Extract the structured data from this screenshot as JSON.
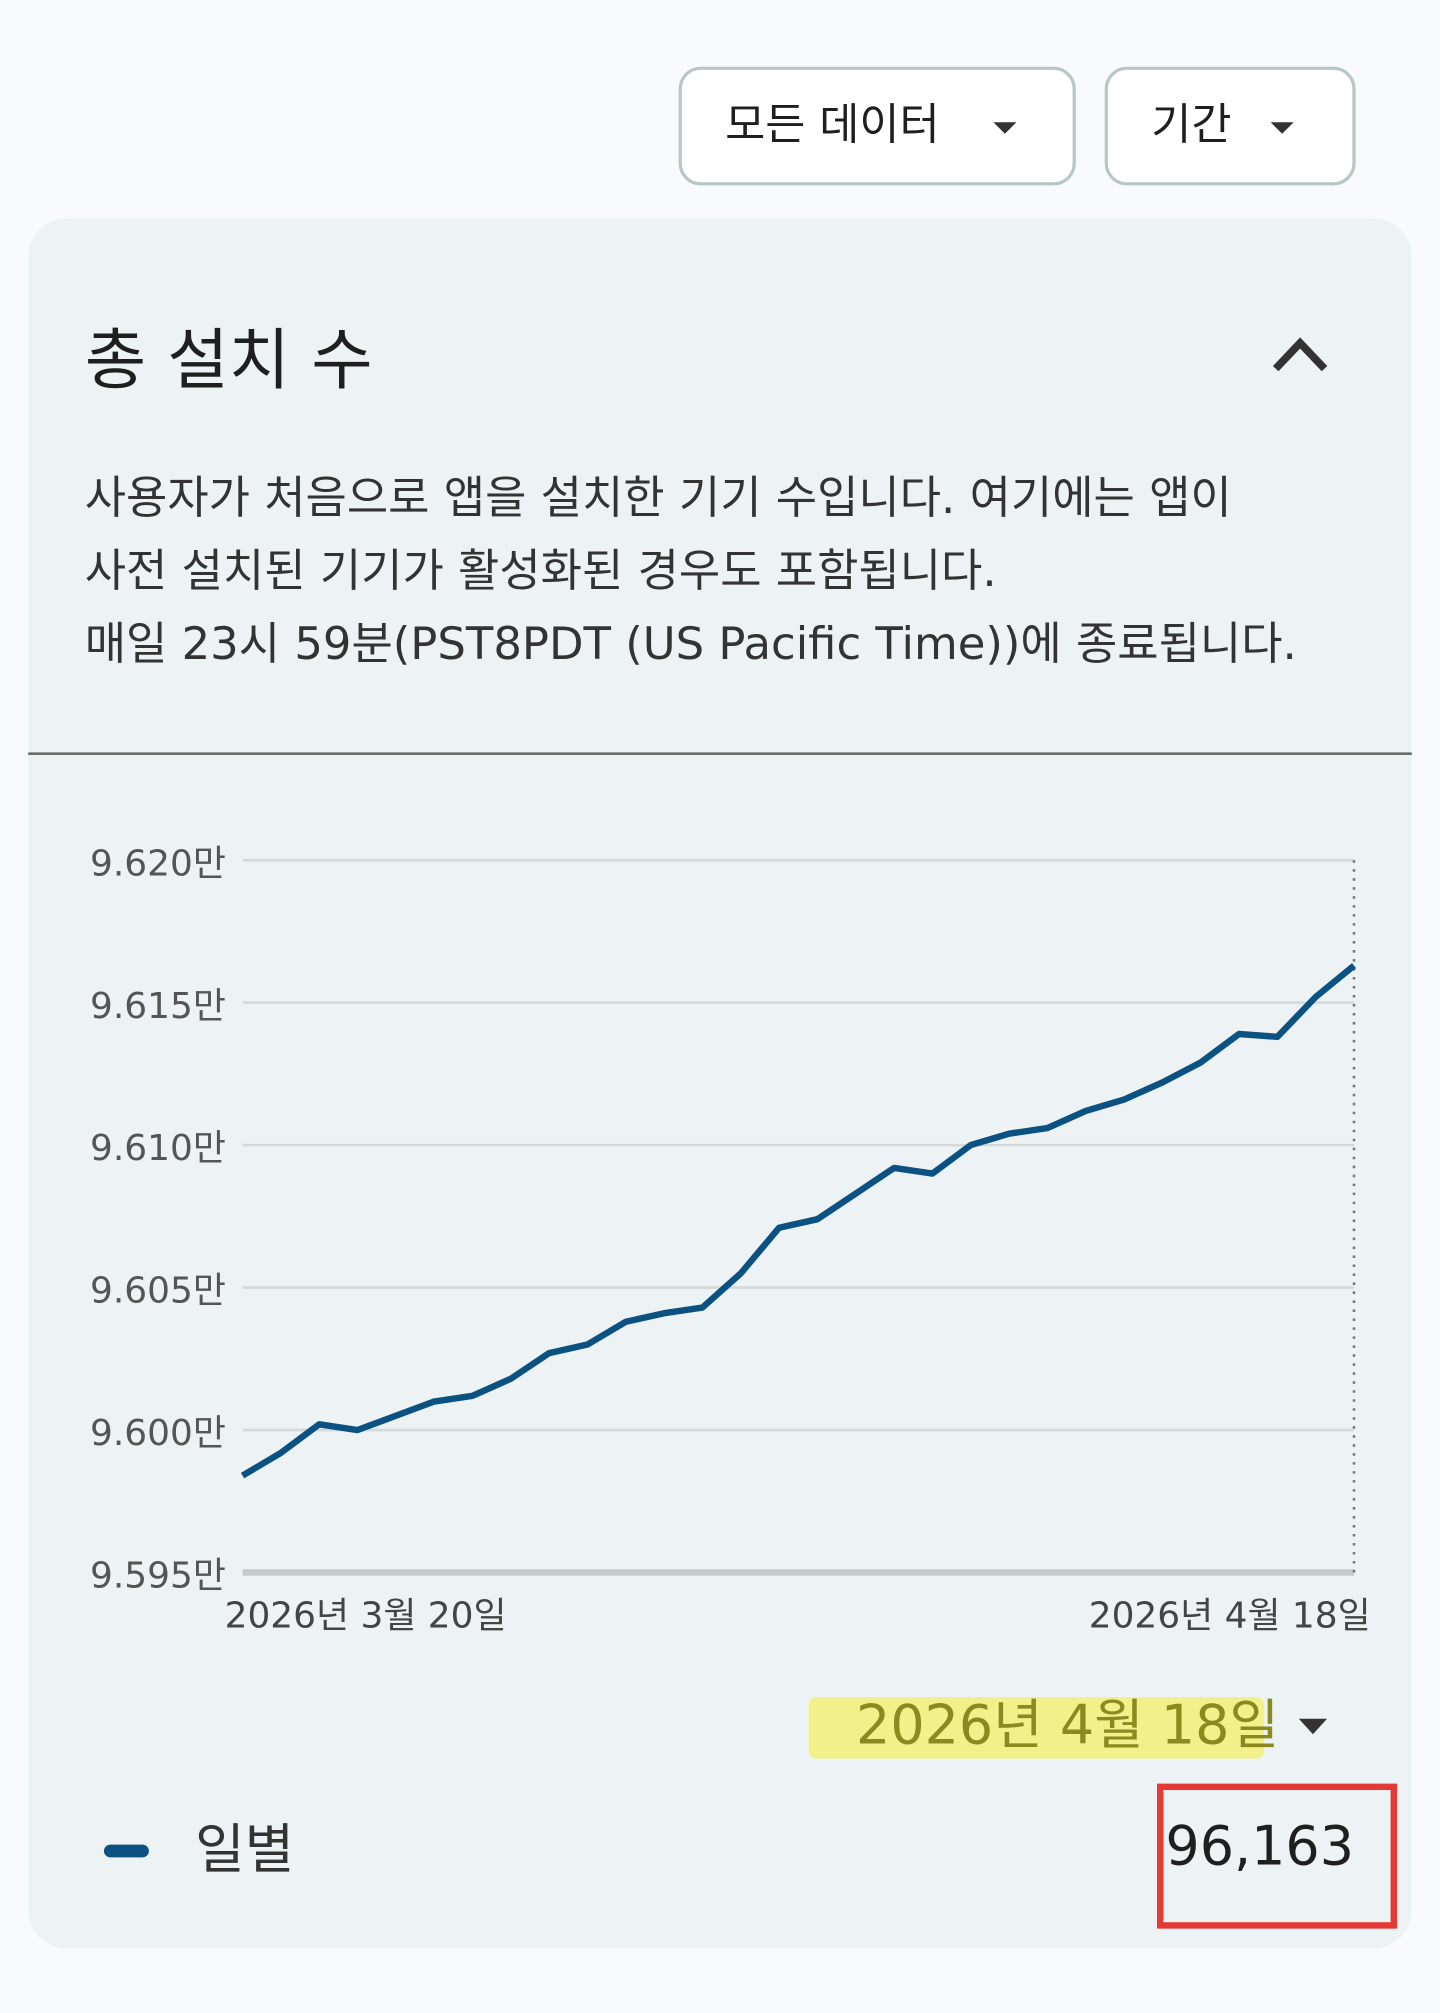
{
  "toolbar": {
    "buttons": [
      {
        "label": "모든 데이터"
      },
      {
        "label": "기간"
      }
    ]
  },
  "card": {
    "title": "총 설치 수",
    "description": [
      "사용자가 처음으로 앱을 설치한 기기 수입니다. 여기에는 앱이",
      "사전 설치된 기기가 활성화된 경우도 포함됩니다.",
      "매일 23시 59분(PST8PDT (US Pacific Time))에 종료됩니다."
    ]
  },
  "chart_data": {
    "type": "line",
    "categories": [
      "2026년 3월 20일",
      null,
      null,
      null,
      null,
      null,
      null,
      null,
      null,
      null,
      null,
      null,
      null,
      null,
      null,
      null,
      null,
      null,
      null,
      null,
      null,
      null,
      null,
      null,
      null,
      null,
      null,
      null,
      null,
      "2026년 4월 18일"
    ],
    "series": [
      {
        "name": "일별",
        "color": "#0b5283",
        "values": [
          95984,
          95992,
          96002,
          96000,
          96005,
          96010,
          96012,
          96018,
          96027,
          96030,
          96038,
          96041,
          96043,
          96055,
          96071,
          96074,
          96083,
          96092,
          96090,
          96100,
          96104,
          96106,
          96112,
          96116,
          96122,
          96129,
          96139,
          96138,
          96152,
          96163
        ]
      }
    ],
    "ylim": [
      95950,
      96200
    ],
    "yticks": [
      {
        "value": 95950,
        "label": "9.595만"
      },
      {
        "value": 96000,
        "label": "9.600만"
      },
      {
        "value": 96050,
        "label": "9.605만"
      },
      {
        "value": 96100,
        "label": "9.610만"
      },
      {
        "value": 96150,
        "label": "9.615만"
      },
      {
        "value": 96200,
        "label": "9.620만"
      }
    ],
    "grid": true
  },
  "selection": {
    "date": "2026년 4월 18일",
    "value": "96,163"
  }
}
